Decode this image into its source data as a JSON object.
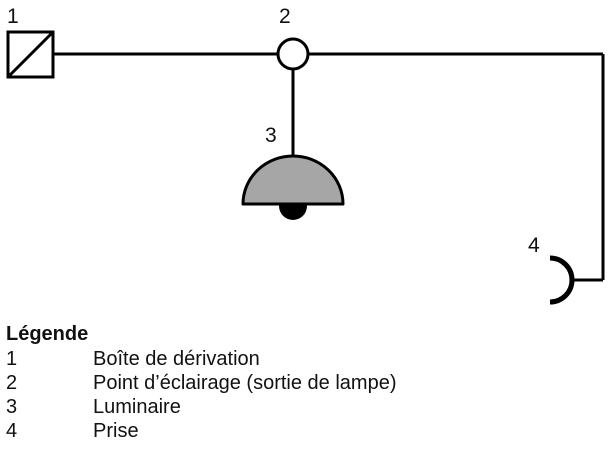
{
  "diagram": {
    "callouts": [
      "1",
      "2",
      "3",
      "4"
    ]
  },
  "legend": {
    "title": "Légende",
    "items": [
      {
        "number": "1",
        "label": "Boîte de dérivation"
      },
      {
        "number": "2",
        "label": "Point d’éclairage (sortie de lampe)"
      },
      {
        "number": "3",
        "label": "Luminaire"
      },
      {
        "number": "4",
        "label": "Prise"
      }
    ]
  },
  "colors": {
    "line": "#000000",
    "luminaire_fill": "#a6a6a6"
  }
}
